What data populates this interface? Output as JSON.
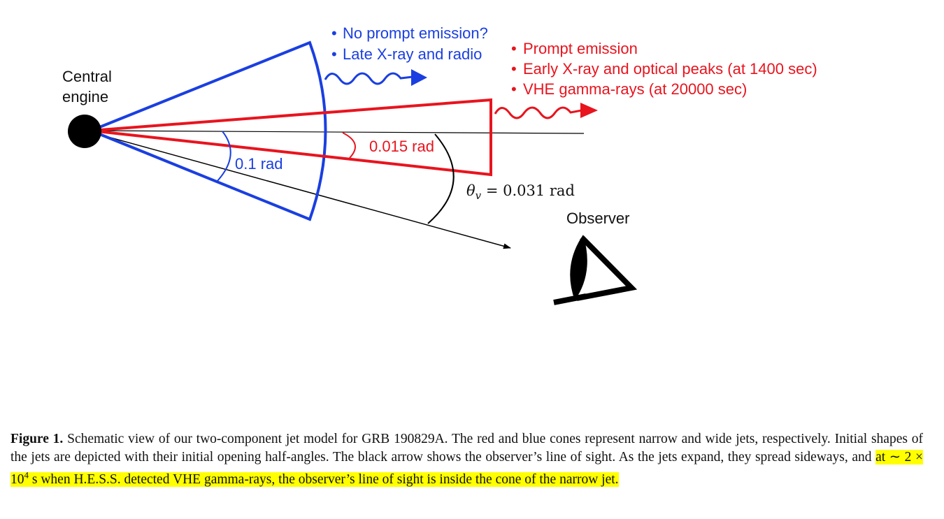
{
  "figure": {
    "central_engine_label": [
      "Central",
      "engine"
    ],
    "observer_label": "Observer",
    "wide_jet_notes": [
      "No prompt emission?",
      "Late X-ray and radio"
    ],
    "narrow_jet_notes": [
      "Prompt emission",
      "Early X-ray and optical peaks (at 1400 sec)",
      "VHE gamma-rays (at 20000 sec)"
    ],
    "bullet": "•",
    "wide_angle_label": "0.1 rad",
    "narrow_angle_label": "0.015 rad",
    "viewing_angle_symbol": "θ",
    "viewing_angle_subscript": "v",
    "viewing_angle_value": " = 0.031 rad",
    "colors": {
      "wide_jet": "#1a3fe0",
      "narrow_jet": "#e8141e",
      "line_of_sight": "#000000"
    }
  },
  "caption": {
    "label": "Figure 1.",
    "text_before_highlight": " Schematic view of our two-component jet model for GRB 190829A. The red and blue cones represent narrow and wide jets, respectively. Initial shapes of the jets are depicted with their initial opening half-angles. The black arrow shows the observer’s line of sight. As the jets expand, they spread sideways, and ",
    "highlight_before_exp": "at ∼ 2 × 10",
    "highlight_exp": "4",
    "highlight_after_exp": " s when H.E.S.S. detected VHE gamma-rays, the observer’s line of sight is inside the cone of the narrow jet."
  }
}
